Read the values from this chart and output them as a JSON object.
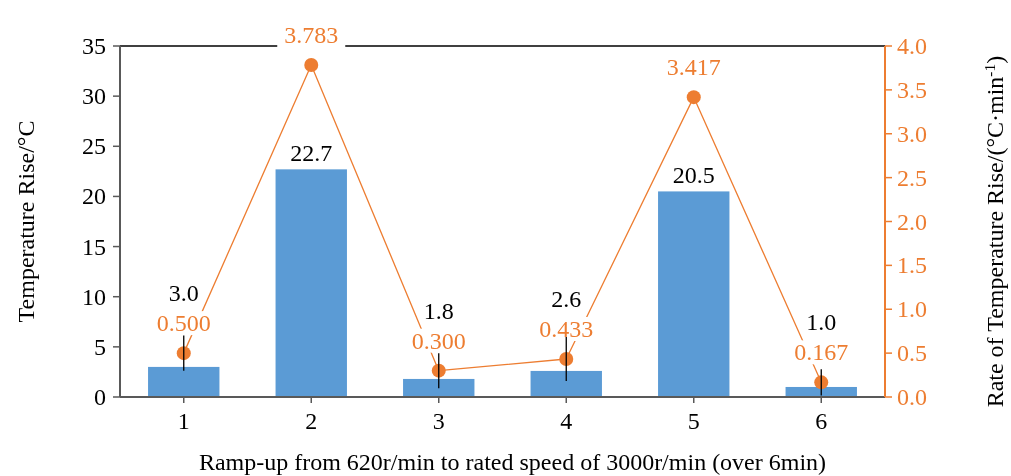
{
  "chart_data": {
    "type": "bar",
    "xlabel": "Ramp-up from 620r/min to rated speed of 3000r/min (over 6min)",
    "ylabel": "Temperature Rise/°C",
    "y2label": "Rate of Temperature Rise/(°C·min$^{-1}$)",
    "categories": [
      "1",
      "2",
      "3",
      "4",
      "5",
      "6"
    ],
    "series": [
      {
        "color": "#5b9bd5",
        "values": [
          3.0,
          22.7,
          1.8,
          2.6,
          20.5,
          1.0
        ],
        "value_labels": [
          "3.0",
          "22.7",
          "1.8",
          "2.6",
          "20.5",
          "1.0"
        ]
      },
      {
        "type": "line",
        "axis": "y2",
        "color": "#ed7d31",
        "marker": "circle",
        "values": [
          0.5,
          3.783,
          0.3,
          0.433,
          3.417,
          0.167
        ],
        "value_labels": [
          "0.500",
          "3.783",
          "0.300",
          "0.433",
          "3.417",
          "0.167"
        ],
        "errors": [
          0.2,
          null,
          0.2,
          0.25,
          null,
          0.15
        ]
      }
    ],
    "ylim": [
      0,
      35
    ],
    "yticks": [
      0,
      5,
      10,
      15,
      20,
      25,
      30,
      35
    ],
    "y2lim": [
      0,
      4
    ],
    "y2ticks": [
      {
        "value": 0,
        "label": "0.0"
      },
      {
        "value": 0.5,
        "label": "0.5"
      },
      {
        "value": 1,
        "label": "1.0"
      },
      {
        "value": 1.5,
        "label": "1.5"
      },
      {
        "value": 2,
        "label": "2.0"
      },
      {
        "value": 2.5,
        "label": "2.5"
      },
      {
        "value": 3,
        "label": "3.0"
      },
      {
        "value": 3.5,
        "label": "3.5"
      },
      {
        "value": 4,
        "label": "4.0"
      }
    ],
    "grid": false
  }
}
